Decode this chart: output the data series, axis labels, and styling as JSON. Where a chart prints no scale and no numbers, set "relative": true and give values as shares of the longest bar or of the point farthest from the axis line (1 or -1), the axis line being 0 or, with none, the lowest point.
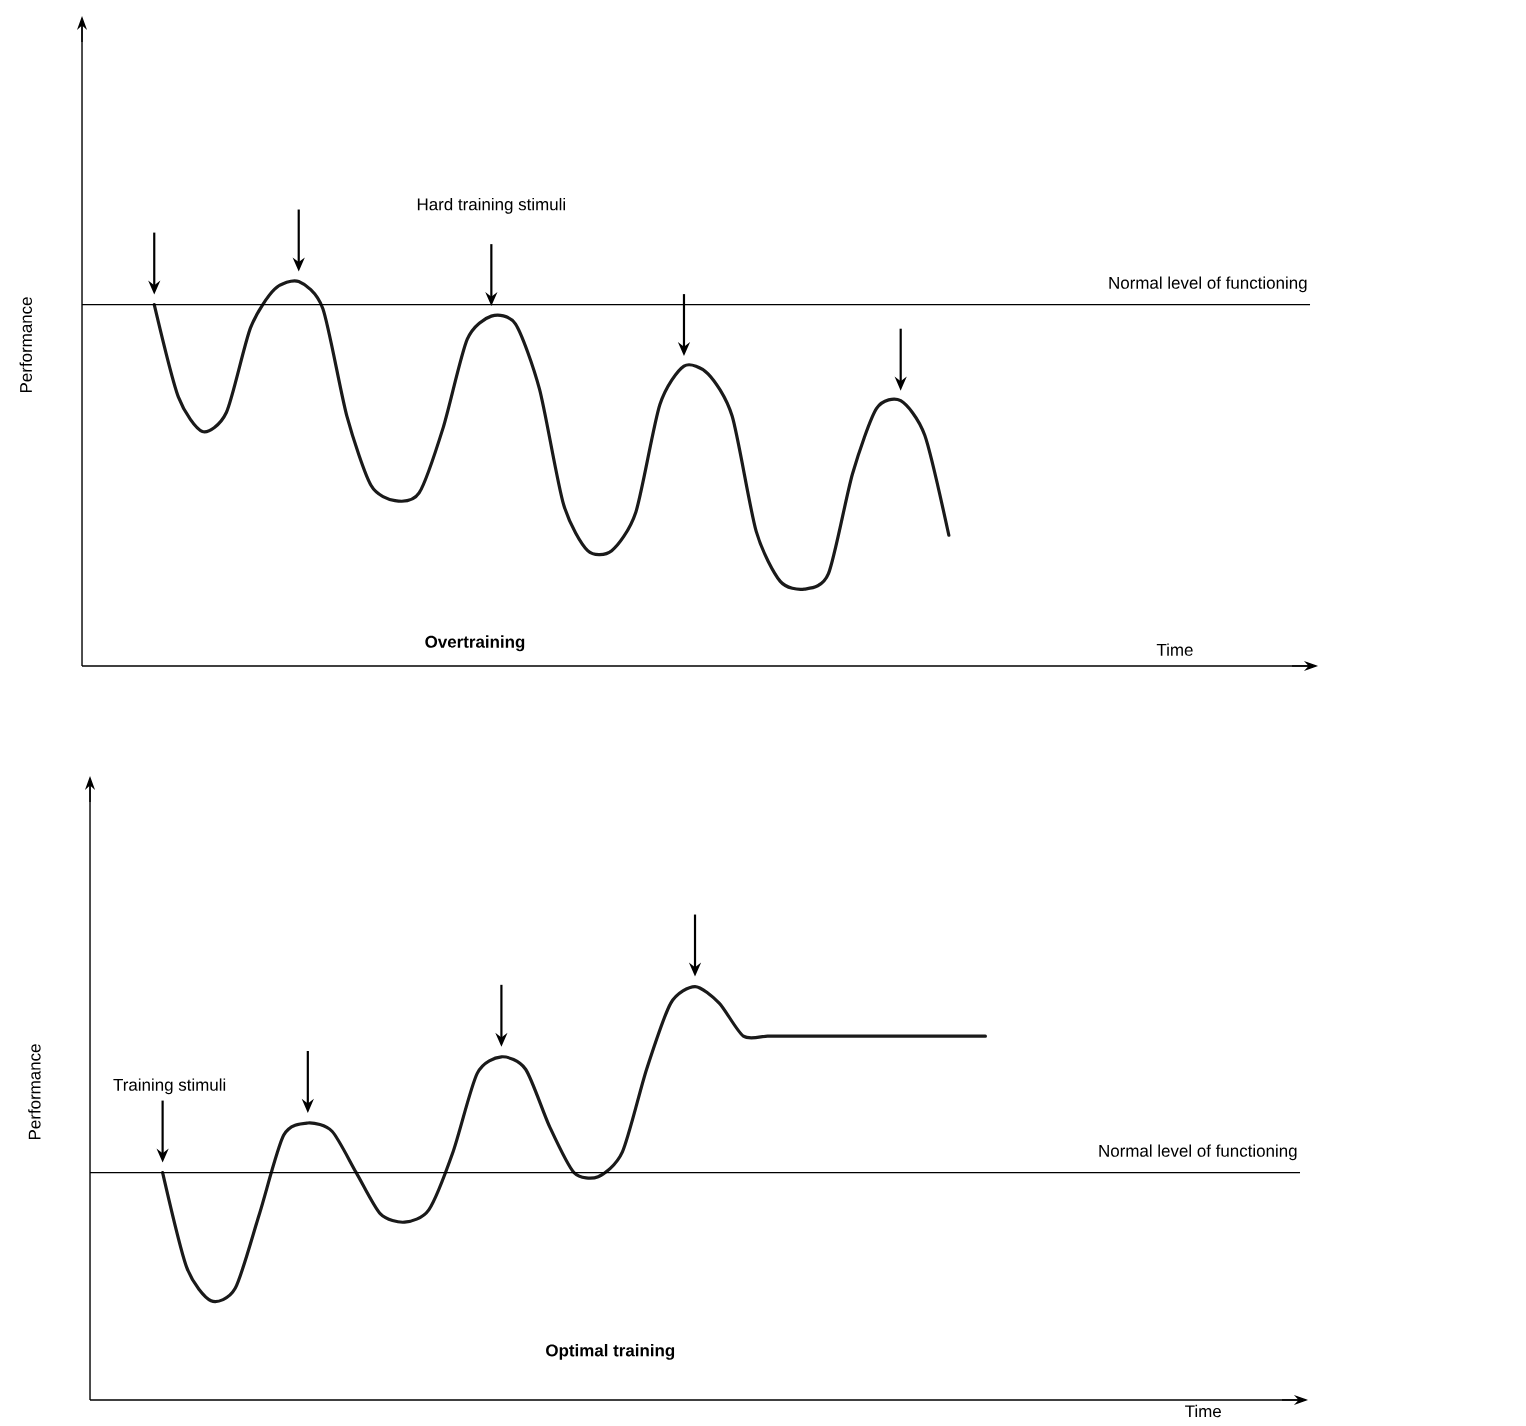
{
  "chart_data": [
    {
      "type": "line",
      "title": "Overtraining",
      "xlabel": "Time",
      "ylabel": "Performance",
      "annotations": [
        "Hard training stimuli"
      ],
      "relative": true,
      "categories": [
        null,
        null,
        null,
        null,
        null,
        null,
        null,
        null,
        null,
        null,
        null,
        null,
        null,
        null,
        null,
        null,
        null,
        null,
        null,
        null,
        null,
        null,
        null,
        null,
        null,
        null,
        null,
        null,
        null,
        null,
        null,
        null,
        null,
        null,
        null,
        null,
        null,
        null,
        null,
        null,
        null,
        null,
        null,
        null,
        null,
        null,
        null,
        null,
        null,
        null,
        null,
        null
      ],
      "series": [
        {
          "color": "#1a1a1a",
          "values": [
            null,
            null,
            null,
            0.94,
            0.7,
            0.61,
            0.66,
            0.88,
            0.98,
            1.0,
            0.93,
            0.65,
            0.47,
            0.43,
            0.45,
            0.62,
            0.85,
            0.91,
            0.89,
            0.72,
            0.42,
            0.3,
            0.3,
            0.4,
            0.68,
            0.78,
            0.76,
            0.65,
            0.35,
            0.22,
            0.2,
            0.24,
            0.5,
            0.67,
            0.69,
            0.6,
            0.34,
            null,
            null,
            null,
            null,
            null,
            null,
            null,
            null,
            null,
            null,
            null,
            null,
            null,
            null,
            null
          ]
        }
      ],
      "ref_lines": [
        {
          "axis": "y",
          "value": 0.94,
          "label": "Normal level of functioning"
        }
      ]
    },
    {
      "type": "line",
      "title": "Optimal training",
      "xlabel": "Time",
      "ylabel": "Performance",
      "annotations": [
        "Training stimuli"
      ],
      "relative": true,
      "categories": [
        null,
        null,
        null,
        null,
        null,
        null,
        null,
        null,
        null,
        null,
        null,
        null,
        null,
        null,
        null,
        null,
        null,
        null,
        null,
        null,
        null,
        null,
        null,
        null,
        null,
        null,
        null,
        null,
        null,
        null,
        null,
        null,
        null,
        null,
        null,
        null,
        null,
        null,
        null,
        null,
        null,
        null,
        null,
        null,
        null,
        null,
        null,
        null,
        null,
        null,
        null
      ],
      "series": [
        {
          "color": "#1a1a1a",
          "values": [
            null,
            null,
            null,
            0.55,
            0.32,
            0.24,
            0.27,
            0.45,
            0.64,
            0.67,
            0.65,
            0.55,
            0.45,
            0.43,
            0.46,
            0.6,
            0.79,
            0.83,
            0.8,
            0.66,
            0.55,
            0.54,
            0.6,
            0.8,
            0.96,
            1.0,
            0.96,
            0.88,
            0.88,
            0.88,
            0.88,
            0.88,
            0.88,
            0.88,
            0.88,
            0.88,
            0.88,
            0.88,
            null,
            null,
            null,
            null,
            null,
            null,
            null,
            null,
            null,
            null,
            null,
            null,
            null
          ]
        }
      ],
      "ref_lines": [
        {
          "axis": "y",
          "value": 0.55,
          "label": "Normal level of functioning"
        }
      ]
    }
  ]
}
